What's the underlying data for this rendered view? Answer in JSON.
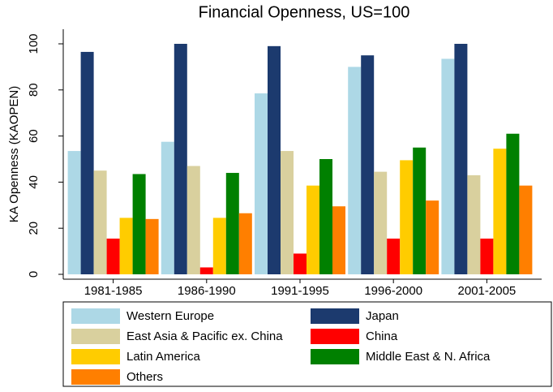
{
  "chart_data": {
    "type": "bar",
    "title": "Financial Openness, US=100",
    "y_label": "KA Openness (KAOPEN)",
    "categories": [
      "1981-1985",
      "1986-1990",
      "1991-1995",
      "1996-2000",
      "2001-2005"
    ],
    "series": [
      {
        "name": "Western Europe",
        "color": "#add8e6",
        "values": [
          53.5,
          57.5,
          78.5,
          90,
          93.5
        ]
      },
      {
        "name": "Japan",
        "color": "#1c3a6e",
        "values": [
          96.5,
          100,
          99,
          95,
          100
        ]
      },
      {
        "name": "East Asia & Pacific ex. China",
        "color": "#d9d09e",
        "values": [
          45,
          47,
          53.5,
          44.5,
          43
        ]
      },
      {
        "name": "China",
        "color": "#ff0000",
        "values": [
          15.5,
          3,
          9,
          15.5,
          15.5
        ]
      },
      {
        "name": "Latin America",
        "color": "#ffcc00",
        "values": [
          24.5,
          24.5,
          38.5,
          49.5,
          54.5
        ]
      },
      {
        "name": "Middle East & N. Africa",
        "color": "#008000",
        "values": [
          43.5,
          44,
          50,
          55,
          61
        ]
      },
      {
        "name": "Others",
        "color": "#ff7f00",
        "values": [
          24,
          26.5,
          29.5,
          32,
          38.5
        ]
      }
    ],
    "ylim": [
      0,
      100
    ],
    "yticks": [
      0,
      20,
      40,
      60,
      80,
      100
    ]
  }
}
